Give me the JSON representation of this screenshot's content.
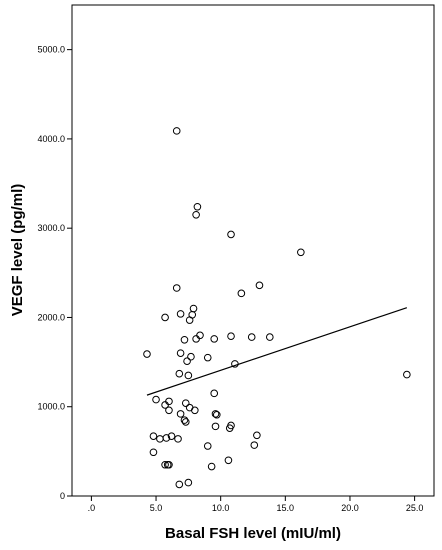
{
  "chart_data": {
    "type": "scatter",
    "xlabel": "Basal FSH level (mIU/ml)",
    "ylabel": "VEGF level (pg/ml)",
    "xlim": [
      -1.5,
      26.5
    ],
    "ylim": [
      0,
      5500
    ],
    "x_ticks": [
      0,
      5,
      10,
      15,
      20,
      25
    ],
    "x_tick_labels": [
      ".0",
      "5.0",
      "10.0",
      "15.0",
      "20.0",
      "25.0"
    ],
    "y_ticks": [
      0,
      1000,
      2000,
      3000,
      4000,
      5000
    ],
    "y_tick_labels": [
      "0",
      "1000.0",
      "2000.0",
      "3000.0",
      "4000.0",
      "5000.0"
    ],
    "grid": false,
    "marker": "open-circle",
    "points": [
      [
        6.6,
        4090
      ],
      [
        8.2,
        3240
      ],
      [
        8.1,
        3150
      ],
      [
        10.8,
        2930
      ],
      [
        16.2,
        2730
      ],
      [
        6.6,
        2330
      ],
      [
        13.0,
        2360
      ],
      [
        11.6,
        2270
      ],
      [
        7.9,
        2100
      ],
      [
        7.8,
        2030
      ],
      [
        5.7,
        2000
      ],
      [
        6.9,
        2040
      ],
      [
        7.6,
        1970
      ],
      [
        8.4,
        1800
      ],
      [
        7.2,
        1750
      ],
      [
        8.1,
        1760
      ],
      [
        9.5,
        1760
      ],
      [
        10.8,
        1790
      ],
      [
        12.4,
        1780
      ],
      [
        13.8,
        1780
      ],
      [
        6.9,
        1600
      ],
      [
        7.7,
        1560
      ],
      [
        9.0,
        1550
      ],
      [
        4.3,
        1590
      ],
      [
        7.4,
        1510
      ],
      [
        11.1,
        1480
      ],
      [
        6.8,
        1370
      ],
      [
        7.5,
        1350
      ],
      [
        24.4,
        1360
      ],
      [
        9.5,
        1150
      ],
      [
        5.0,
        1080
      ],
      [
        5.7,
        1020
      ],
      [
        6.0,
        1060
      ],
      [
        7.3,
        1040
      ],
      [
        7.6,
        990
      ],
      [
        8.0,
        960
      ],
      [
        6.0,
        960
      ],
      [
        6.9,
        920
      ],
      [
        7.2,
        850
      ],
      [
        7.3,
        830
      ],
      [
        9.6,
        920
      ],
      [
        9.7,
        910
      ],
      [
        9.6,
        780
      ],
      [
        10.8,
        790
      ],
      [
        10.7,
        760
      ],
      [
        4.8,
        670
      ],
      [
        5.3,
        640
      ],
      [
        5.8,
        650
      ],
      [
        6.2,
        670
      ],
      [
        6.7,
        640
      ],
      [
        9.0,
        560
      ],
      [
        12.6,
        570
      ],
      [
        12.8,
        680
      ],
      [
        4.8,
        490
      ],
      [
        5.7,
        350
      ],
      [
        5.9,
        350
      ],
      [
        6.0,
        350
      ],
      [
        9.3,
        330
      ],
      [
        10.6,
        400
      ],
      [
        6.8,
        130
      ],
      [
        7.5,
        150
      ]
    ],
    "fit_line": {
      "x": [
        4.3,
        24.4
      ],
      "y": [
        1130,
        2110
      ]
    }
  }
}
